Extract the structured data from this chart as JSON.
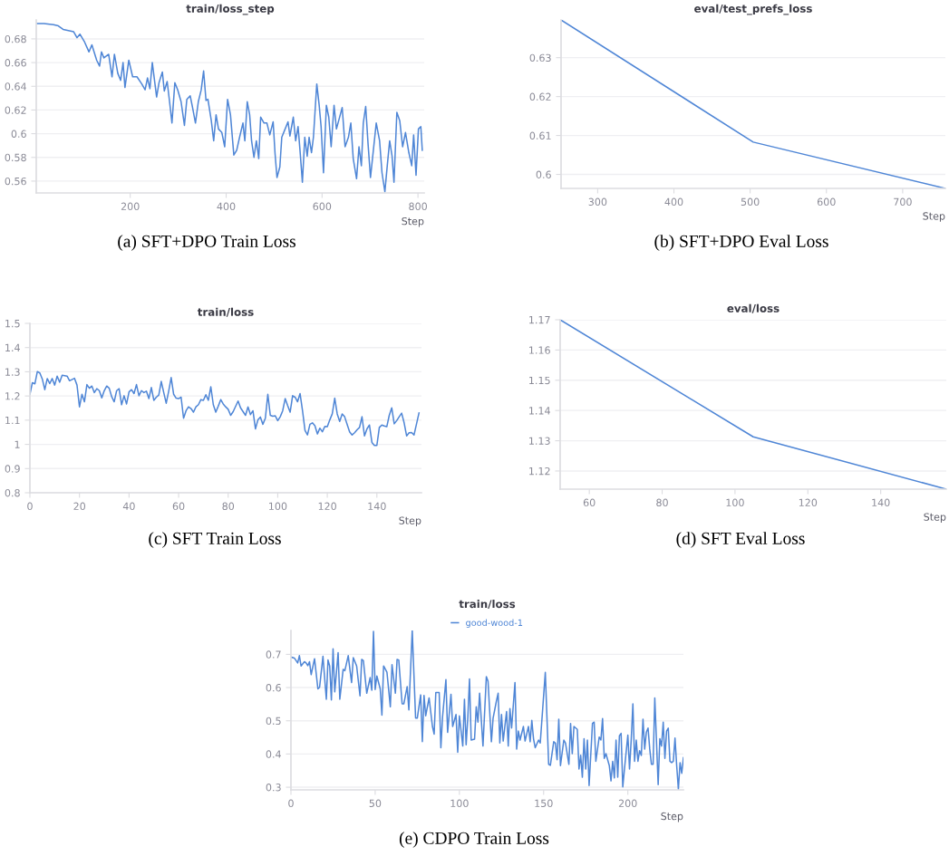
{
  "chart_data": [
    {
      "type": "line",
      "title": "train/loss_step",
      "xlabel": "Step",
      "annotations": [
        "(a) SFT+DPO Train Loss"
      ],
      "grid": "y",
      "xlim": [
        4,
        813
      ],
      "ylim": [
        0.55,
        0.696
      ],
      "xticks": [
        200,
        400,
        600,
        800
      ],
      "yticks": [
        0.56,
        0.58,
        0.6,
        0.62,
        0.64,
        0.66,
        0.68
      ],
      "series": [
        {
          "color": "#4f86d6",
          "x": [
            5,
            20,
            40,
            50,
            60,
            82,
            89,
            95,
            104,
            114,
            120,
            130,
            136,
            140,
            145,
            155,
            162,
            167,
            174,
            180,
            185,
            189,
            197,
            205,
            214,
            224,
            231,
            236,
            241,
            246,
            250,
            255,
            260,
            267,
            271,
            277,
            282,
            287,
            293,
            299,
            306,
            313,
            318,
            325,
            330,
            336,
            342,
            348,
            353,
            358,
            362,
            369,
            374,
            379,
            384,
            391,
            397,
            403,
            409,
            416,
            422,
            428,
            435,
            439,
            444,
            449,
            453,
            458,
            463,
            468,
            472,
            479,
            485,
            491,
            498,
            502,
            506,
            512,
            516,
            523,
            529,
            533,
            540,
            545,
            550,
            554,
            559,
            564,
            569,
            573,
            578,
            582,
            589,
            594,
            598,
            603,
            609,
            614,
            619,
            625,
            630,
            636,
            642,
            648,
            655,
            660,
            665,
            672,
            677,
            682,
            686,
            691,
            696,
            701,
            707,
            713,
            720,
            725,
            731,
            736,
            741,
            746,
            750,
            756,
            762,
            768,
            774,
            781,
            787,
            791,
            796,
            801,
            806,
            809
          ],
          "values": [
            0.693,
            0.693,
            0.692,
            0.691,
            0.688,
            0.686,
            0.681,
            0.684,
            0.678,
            0.669,
            0.675,
            0.662,
            0.657,
            0.669,
            0.664,
            0.667,
            0.648,
            0.667,
            0.651,
            0.645,
            0.66,
            0.639,
            0.662,
            0.648,
            0.648,
            0.642,
            0.637,
            0.647,
            0.638,
            0.66,
            0.647,
            0.631,
            0.643,
            0.652,
            0.636,
            0.644,
            0.627,
            0.609,
            0.643,
            0.637,
            0.627,
            0.607,
            0.629,
            0.632,
            0.622,
            0.609,
            0.627,
            0.637,
            0.653,
            0.628,
            0.629,
            0.611,
            0.594,
            0.616,
            0.604,
            0.601,
            0.589,
            0.629,
            0.616,
            0.582,
            0.586,
            0.597,
            0.609,
            0.594,
            0.627,
            0.616,
            0.594,
            0.58,
            0.594,
            0.579,
            0.614,
            0.609,
            0.609,
            0.599,
            0.61,
            0.583,
            0.563,
            0.572,
            0.597,
            0.604,
            0.61,
            0.598,
            0.614,
            0.594,
            0.606,
            0.586,
            0.559,
            0.597,
            0.581,
            0.597,
            0.584,
            0.597,
            0.642,
            0.624,
            0.606,
            0.567,
            0.624,
            0.614,
            0.589,
            0.624,
            0.604,
            0.613,
            0.622,
            0.589,
            0.597,
            0.609,
            0.579,
            0.562,
            0.589,
            0.573,
            0.609,
            0.623,
            0.591,
            0.563,
            0.586,
            0.609,
            0.594,
            0.567,
            0.551,
            0.573,
            0.594,
            0.581,
            0.559,
            0.618,
            0.611,
            0.589,
            0.601,
            0.584,
            0.573,
            0.599,
            0.565,
            0.604,
            0.606,
            0.586
          ]
        }
      ]
    },
    {
      "type": "line",
      "title": "eval/test_prefs_loss",
      "xlabel": "Step",
      "annotations": [
        "(b) SFT+DPO Eval Loss"
      ],
      "grid": "y",
      "xlim": [
        252,
        756
      ],
      "ylim": [
        0.5964,
        0.6397
      ],
      "xticks": [
        300,
        400,
        500,
        600,
        700
      ],
      "yticks": [
        0.6,
        0.61,
        0.62,
        0.63
      ],
      "series": [
        {
          "color": "#4f86d6",
          "x": [
            252,
            504,
            756
          ],
          "values": [
            0.6397,
            0.6083,
            0.5964
          ]
        }
      ]
    },
    {
      "type": "line",
      "title": "train/loss",
      "xlabel": "Step",
      "annotations": [
        "(c) SFT Train Loss"
      ],
      "grid": "y",
      "xlim": [
        0,
        158
      ],
      "ylim": [
        0.8,
        1.5
      ],
      "xticks": [
        0,
        20,
        40,
        60,
        80,
        100,
        120,
        140
      ],
      "yticks": [
        0.8,
        0.9,
        1,
        1.1,
        1.2,
        1.3,
        1.4,
        1.5
      ],
      "series": [
        {
          "color": "#4f86d6",
          "x": [
            0,
            1,
            2,
            3,
            4,
            5,
            6,
            7,
            8,
            9,
            10,
            11,
            12,
            13,
            15,
            16,
            18,
            19,
            20,
            21,
            22,
            23,
            24,
            25,
            26,
            27,
            28,
            29,
            30,
            31,
            32,
            33,
            34,
            35,
            36,
            37,
            38,
            39,
            40,
            41,
            42,
            43,
            44,
            45,
            46,
            47,
            48,
            49,
            50,
            51,
            52,
            53,
            54,
            55,
            56,
            57,
            58,
            59,
            60,
            61,
            62,
            63,
            64,
            65,
            66,
            67,
            68,
            69,
            70,
            71,
            72,
            73,
            74,
            75,
            76,
            77,
            78,
            79,
            80,
            81,
            82,
            84,
            85,
            87,
            88,
            89,
            90,
            91,
            92,
            93,
            94,
            95,
            96,
            97,
            98,
            99,
            100,
            101,
            102,
            103,
            104,
            105,
            106,
            107,
            108,
            109,
            110,
            111,
            112,
            113,
            114,
            115,
            116,
            117,
            118,
            119,
            120,
            121,
            122,
            123,
            124,
            125,
            126,
            127,
            128,
            129,
            130,
            131,
            132,
            133,
            134,
            135,
            136,
            137,
            138,
            139,
            140,
            141,
            142,
            143,
            144,
            145,
            146,
            147,
            148,
            149,
            150,
            151,
            152,
            153,
            154,
            155,
            157
          ],
          "values": [
            1.207,
            1.255,
            1.25,
            1.301,
            1.295,
            1.27,
            1.226,
            1.272,
            1.251,
            1.272,
            1.245,
            1.282,
            1.257,
            1.286,
            1.282,
            1.263,
            1.273,
            1.245,
            1.155,
            1.207,
            1.176,
            1.247,
            1.232,
            1.241,
            1.214,
            1.23,
            1.222,
            1.192,
            1.222,
            1.241,
            1.232,
            1.197,
            1.176,
            1.222,
            1.23,
            1.164,
            1.201,
            1.167,
            1.217,
            1.226,
            1.21,
            1.247,
            1.201,
            1.222,
            1.214,
            1.22,
            1.189,
            1.235,
            1.182,
            1.195,
            1.204,
            1.26,
            1.214,
            1.17,
            1.22,
            1.276,
            1.207,
            1.191,
            1.189,
            1.195,
            1.108,
            1.139,
            1.155,
            1.148,
            1.133,
            1.155,
            1.164,
            1.185,
            1.182,
            1.205,
            1.182,
            1.238,
            1.164,
            1.133,
            1.158,
            1.185,
            1.167,
            1.155,
            1.145,
            1.12,
            1.135,
            1.179,
            1.151,
            1.12,
            1.155,
            1.123,
            1.139,
            1.064,
            1.101,
            1.113,
            1.083,
            1.108,
            1.207,
            1.12,
            1.116,
            1.118,
            1.098,
            1.114,
            1.139,
            1.189,
            1.16,
            1.133,
            1.201,
            1.195,
            1.176,
            1.21,
            1.139,
            1.058,
            1.039,
            1.083,
            1.089,
            1.077,
            1.043,
            1.067,
            1.052,
            1.074,
            1.073,
            1.101,
            1.126,
            1.191,
            1.126,
            1.095,
            1.126,
            1.114,
            1.083,
            1.052,
            1.039,
            1.048,
            1.06,
            1.07,
            1.114,
            1.035,
            1.064,
            1.08,
            1.008,
            0.996,
            0.996,
            1.07,
            1.08,
            1.076,
            1.073,
            1.12,
            1.151,
            1.085,
            1.098,
            1.114,
            1.129,
            1.089,
            1.035,
            1.048,
            1.049,
            1.039,
            1.13
          ]
        }
      ]
    },
    {
      "type": "line",
      "title": "eval/loss",
      "xlabel": "Step",
      "annotations": [
        "(d) SFT Eval Loss"
      ],
      "grid": "y",
      "xlim": [
        52,
        158
      ],
      "ylim": [
        1.114,
        1.17
      ],
      "xticks": [
        60,
        80,
        100,
        120,
        140
      ],
      "yticks": [
        1.12,
        1.13,
        1.14,
        1.15,
        1.16,
        1.17
      ],
      "series": [
        {
          "color": "#4f86d6",
          "x": [
            52,
            105,
            158
          ],
          "values": [
            1.17,
            1.1313,
            1.114
          ]
        }
      ]
    },
    {
      "type": "line",
      "title": "train/loss",
      "xlabel": "Step",
      "annotations": [
        "(e) CDPO Train Loss"
      ],
      "grid": "y",
      "legend": "top",
      "xlim": [
        0,
        233
      ],
      "ylim": [
        0.292,
        0.772
      ],
      "xticks": [
        0,
        50,
        100,
        150,
        200
      ],
      "yticks": [
        0.3,
        0.4,
        0.5,
        0.6,
        0.7
      ],
      "series": [
        {
          "name": "good-wood-1",
          "color": "#4f86d6",
          "x": [
            0,
            2,
            4,
            5,
            6,
            8,
            9,
            10,
            11,
            12,
            14,
            16,
            17,
            19,
            21,
            22,
            23,
            24,
            25,
            26,
            28,
            29,
            31,
            32,
            34,
            36,
            37,
            39,
            41,
            42,
            43,
            45,
            47,
            48,
            49,
            50,
            51,
            53,
            54,
            55,
            57,
            59,
            60,
            62,
            63,
            64,
            66,
            67,
            69,
            70,
            72,
            74,
            75,
            77,
            78,
            79,
            80,
            82,
            84,
            85,
            86,
            88,
            89,
            90,
            92,
            93,
            95,
            96,
            98,
            99,
            100,
            102,
            103,
            104,
            105,
            106,
            107,
            109,
            110,
            111,
            112,
            114,
            116,
            117,
            119,
            120,
            122,
            123,
            124,
            125,
            126,
            128,
            129,
            130,
            131,
            133,
            134,
            135,
            136,
            138,
            139,
            141,
            142,
            143,
            144,
            145,
            147,
            148,
            151,
            153,
            154,
            156,
            157,
            158,
            159,
            160,
            162,
            163,
            165,
            166,
            167,
            168,
            170,
            171,
            172,
            173,
            174,
            175,
            176,
            177,
            179,
            180,
            181,
            183,
            184,
            185,
            186,
            187,
            189,
            190,
            191,
            192,
            193,
            194,
            195,
            196,
            197,
            198,
            200,
            201,
            202,
            203,
            204,
            205,
            206,
            207,
            208,
            209,
            210,
            211,
            212,
            213,
            214,
            215,
            216,
            218,
            219,
            220,
            221,
            222,
            223,
            224,
            225,
            226,
            227,
            228,
            229,
            230,
            231,
            232,
            233
          ],
          "values": [
            0.692,
            0.689,
            0.674,
            0.696,
            0.665,
            0.678,
            0.674,
            0.666,
            0.678,
            0.639,
            0.687,
            0.596,
            0.601,
            0.694,
            0.565,
            0.683,
            0.665,
            0.563,
            0.717,
            0.587,
            0.705,
            0.565,
            0.655,
            0.651,
            0.696,
            0.615,
            0.69,
            0.665,
            0.575,
            0.685,
            0.681,
            0.583,
            0.63,
            0.592,
            0.769,
            0.594,
            0.635,
            0.596,
            0.517,
            0.665,
            0.646,
            0.542,
            0.669,
            0.583,
            0.685,
            0.683,
            0.551,
            0.551,
            0.603,
            0.533,
            0.772,
            0.508,
            0.508,
            0.578,
            0.437,
            0.576,
            0.515,
            0.569,
            0.483,
            0.46,
            0.585,
            0.585,
            0.419,
            0.512,
            0.624,
            0.465,
            0.58,
            0.483,
            0.519,
            0.405,
            0.515,
            0.424,
            0.565,
            0.428,
            0.51,
            0.626,
            0.442,
            0.445,
            0.542,
            0.496,
            0.583,
            0.424,
            0.633,
            0.619,
            0.437,
            0.508,
            0.56,
            0.583,
            0.433,
            0.519,
            0.439,
            0.528,
            0.424,
            0.537,
            0.478,
            0.615,
            0.415,
            0.469,
            0.442,
            0.483,
            0.439,
            0.483,
            0.437,
            0.501,
            0.446,
            0.419,
            0.442,
            0.433,
            0.646,
            0.369,
            0.366,
            0.437,
            0.433,
            0.383,
            0.505,
            0.365,
            0.442,
            0.433,
            0.369,
            0.492,
            0.401,
            0.483,
            0.474,
            0.355,
            0.396,
            0.33,
            0.446,
            0.355,
            0.442,
            0.305,
            0.492,
            0.496,
            0.378,
            0.451,
            0.442,
            0.507,
            0.387,
            0.401,
            0.365,
            0.319,
            0.378,
            0.328,
            0.442,
            0.33,
            0.455,
            0.462,
            0.301,
            0.355,
            0.457,
            0.355,
            0.442,
            0.551,
            0.378,
            0.442,
            0.378,
            0.41,
            0.396,
            0.505,
            0.415,
            0.466,
            0.478,
            0.415,
            0.369,
            0.369,
            0.569,
            0.308,
            0.446,
            0.424,
            0.496,
            0.387,
            0.469,
            0.478,
            0.378,
            0.374,
            0.378,
            0.448,
            0.365,
            0.294,
            0.374,
            0.342,
            0.389
          ]
        }
      ]
    }
  ]
}
